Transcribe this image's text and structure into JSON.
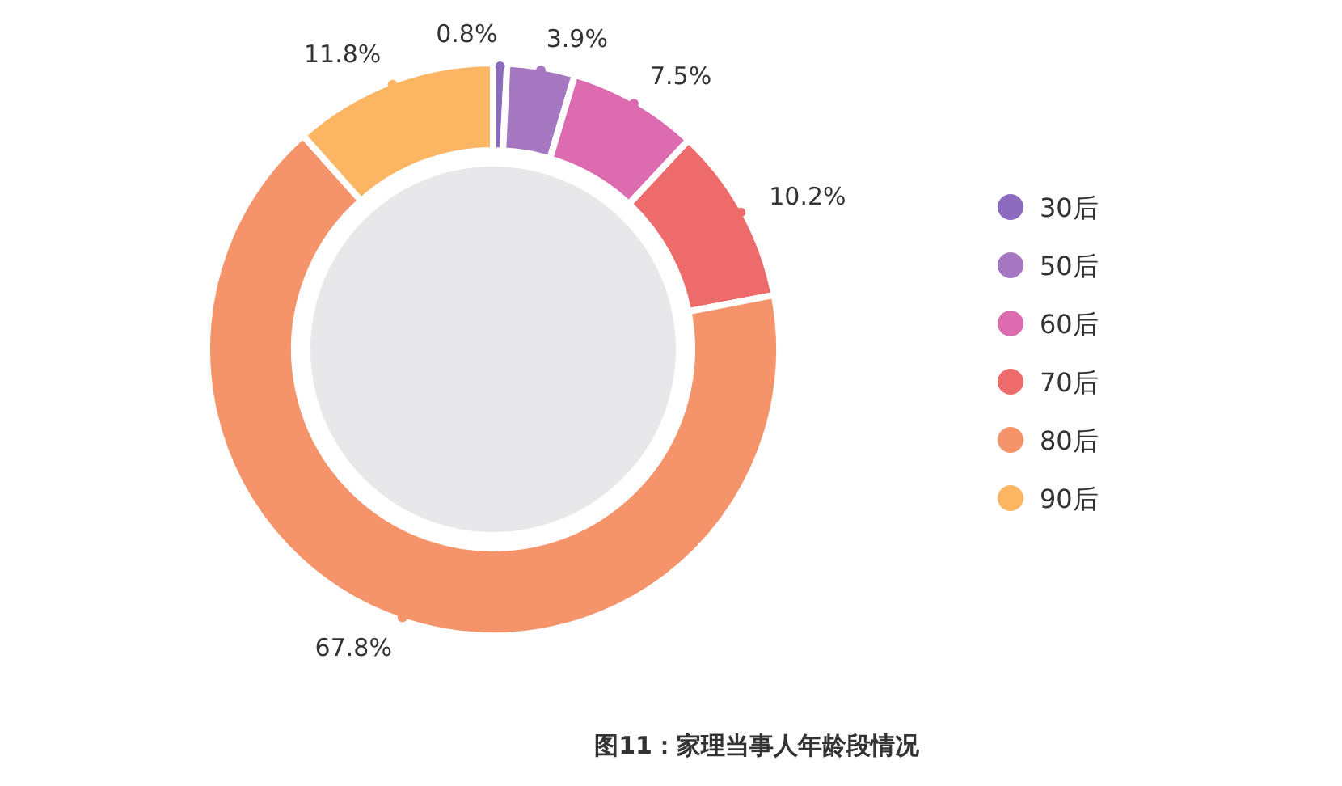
{
  "chart_data": {
    "type": "donut",
    "title": "图11：家理当事人年龄段情况",
    "categories": [
      "30后",
      "50后",
      "60后",
      "70后",
      "80后",
      "90后"
    ],
    "values": [
      0.8,
      3.9,
      7.5,
      10.2,
      67.8,
      11.8
    ],
    "colors": [
      "#8c6bbf",
      "#a678c2",
      "#dd6bb0",
      "#ee6b6b",
      "#f5936a",
      "#fbb563"
    ],
    "value_labels": [
      "0.8%",
      "3.9%",
      "7.5%",
      "10.2%",
      "67.8%",
      "11.8%"
    ],
    "legend": "right"
  }
}
